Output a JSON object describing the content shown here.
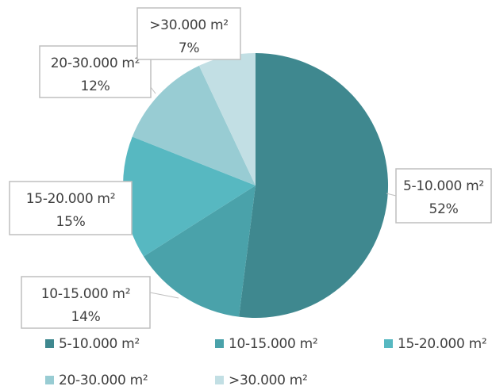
{
  "chart_data": {
    "type": "pie",
    "title": "",
    "categories": [
      "5-10.000 m²",
      "10-15.000 m²",
      "15-20.000 m²",
      "20-30.000 m²",
      ">30.000 m²"
    ],
    "values": [
      52,
      14,
      15,
      12,
      7
    ],
    "value_labels": [
      "52%",
      "14%",
      "15%",
      "12%",
      "7%"
    ],
    "colors": [
      "#3f888f",
      "#4aa2aa",
      "#57b8c1",
      "#98ccd3",
      "#c2dfe4"
    ],
    "start_angle_deg": 0,
    "direction": "clockwise",
    "legend": {
      "position": "bottom",
      "entries": [
        "5-10.000 m²",
        "10-15.000 m²",
        "15-20.000 m²",
        "20-30.000 m²",
        ">30.000 m²"
      ]
    }
  }
}
